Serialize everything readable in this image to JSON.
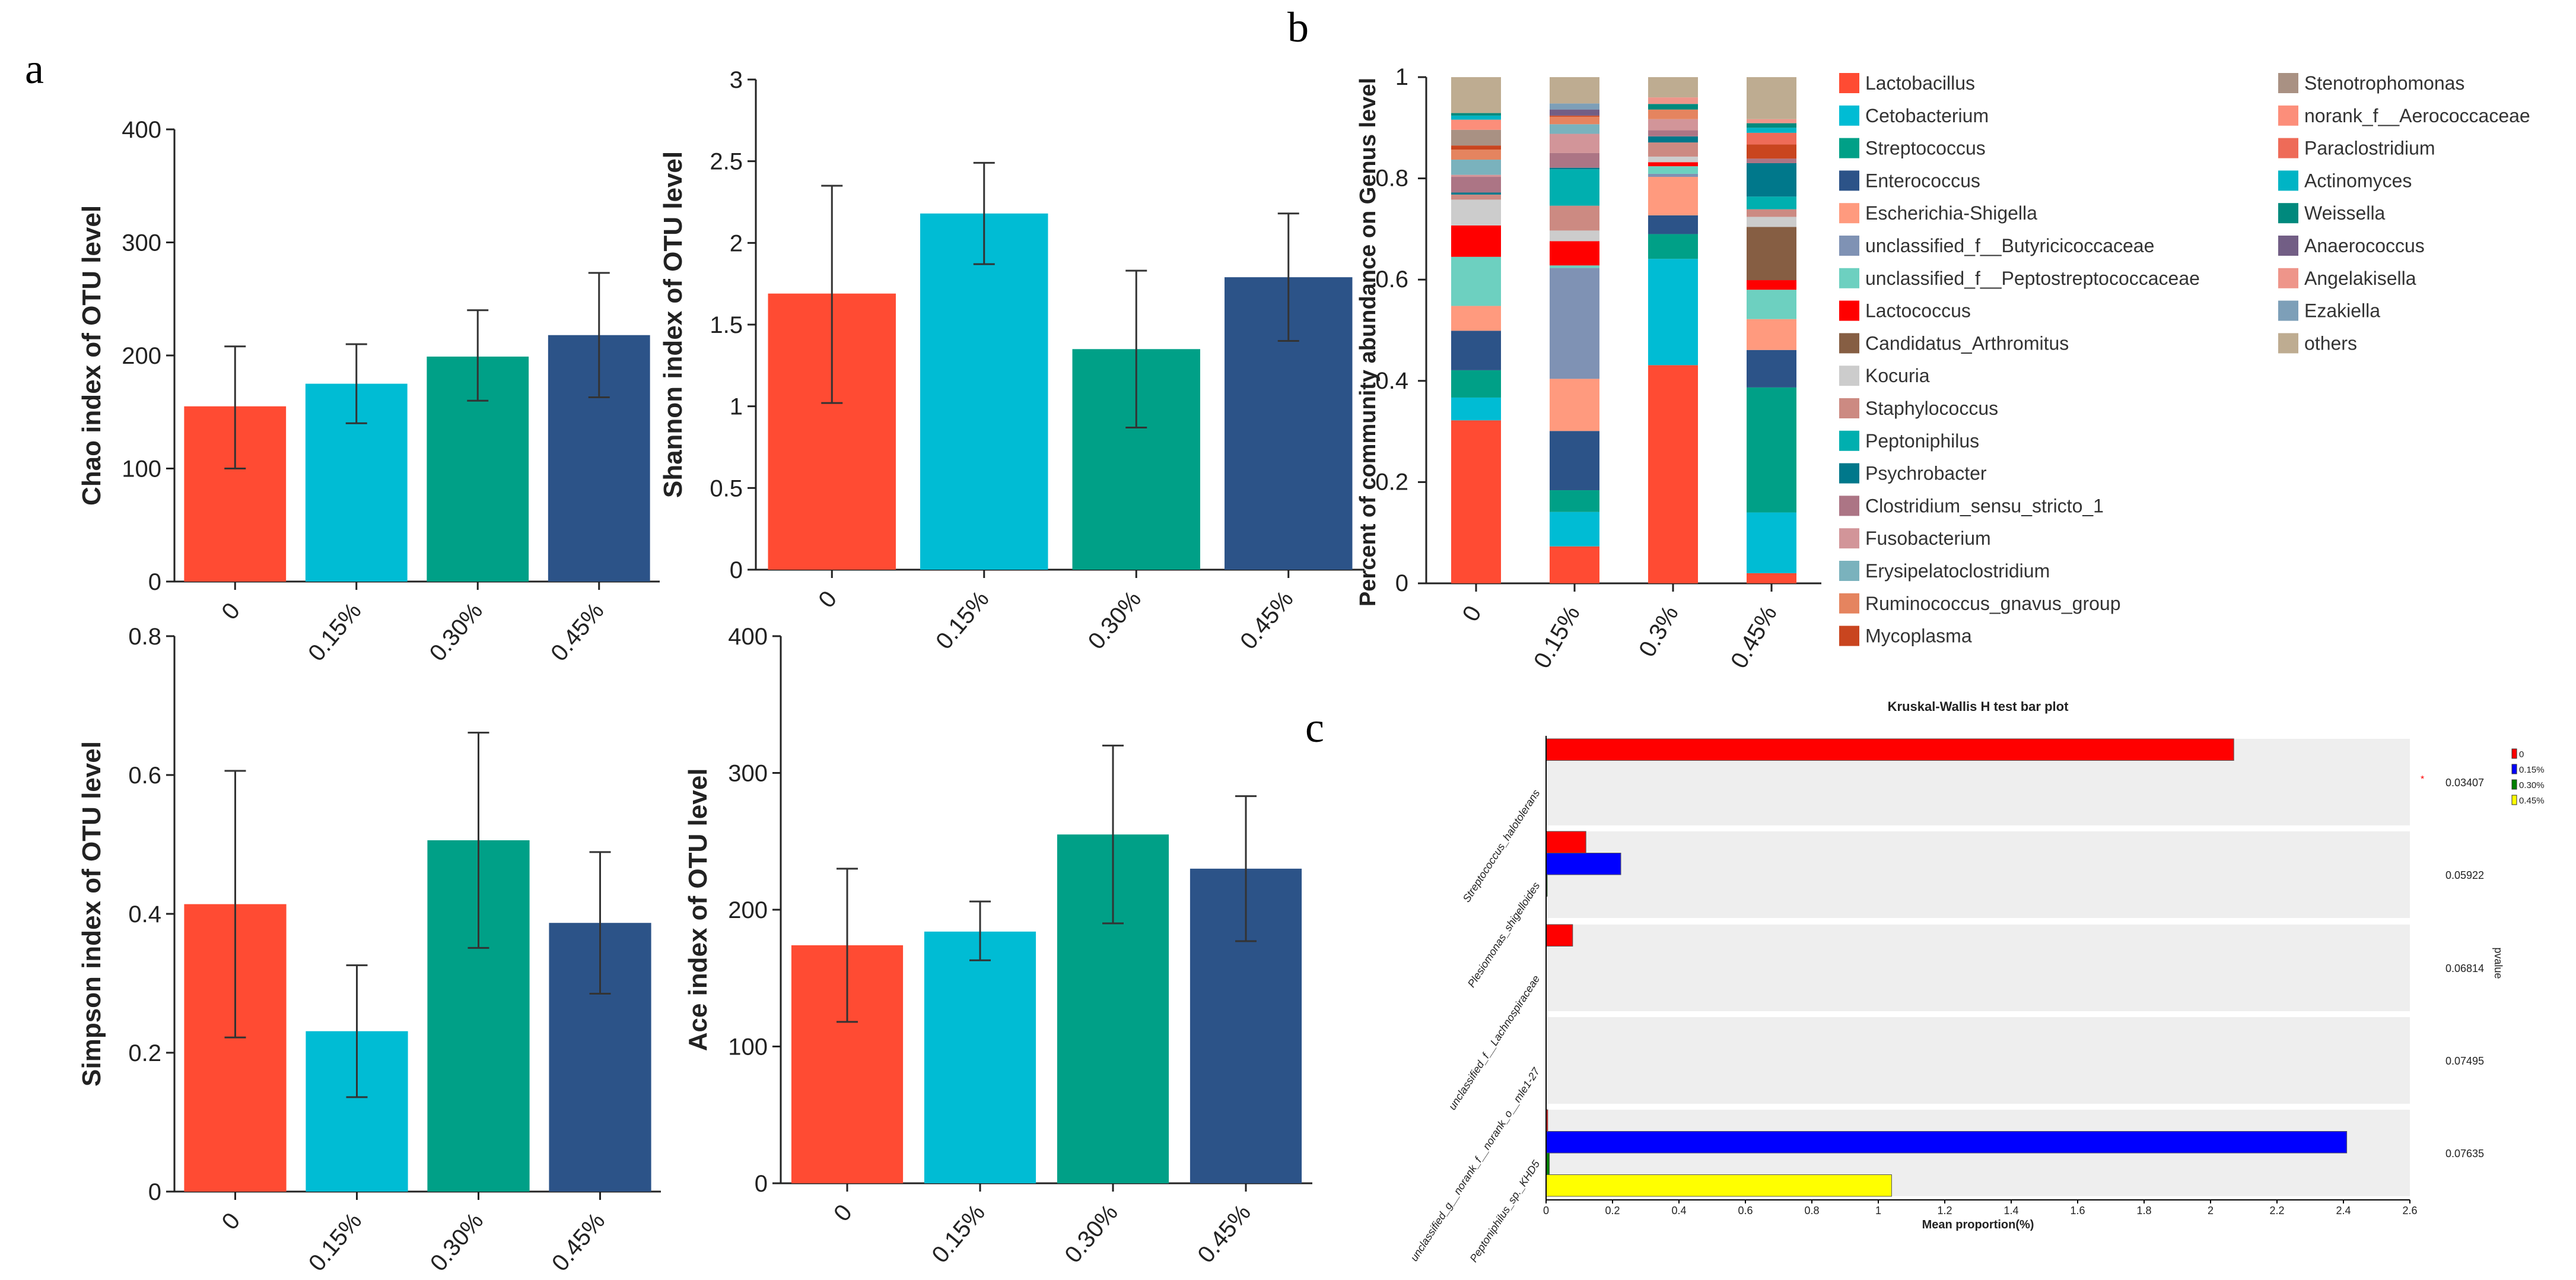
{
  "panel_labels": {
    "a": "a",
    "b": "b",
    "c": "c"
  },
  "chart_data": [
    {
      "id": "chao",
      "type": "bar",
      "ylabel": "Chao index of OTU level",
      "categories": [
        "0",
        "0.15%",
        "0.30%",
        "0.45%"
      ],
      "values": [
        155,
        175,
        199,
        218
      ],
      "error_low": [
        100,
        140,
        160,
        163
      ],
      "error_high": [
        208,
        210,
        240,
        273
      ],
      "ylim": [
        0,
        400
      ],
      "yticks": [
        0,
        100,
        200,
        300,
        400
      ],
      "colors": [
        "#FF4B33",
        "#00BCD4",
        "#00A087",
        "#2C5388"
      ]
    },
    {
      "id": "shannon",
      "type": "bar",
      "ylabel": "Shannon index of OTU level",
      "categories": [
        "0",
        "0.15%",
        "0.30%",
        "0.45%"
      ],
      "values": [
        1.69,
        2.18,
        1.35,
        1.79
      ],
      "error_low": [
        1.02,
        1.87,
        0.87,
        1.4
      ],
      "error_high": [
        2.35,
        2.49,
        1.83,
        2.18
      ],
      "ylim": [
        0,
        3
      ],
      "yticks": [
        0,
        0.5,
        1,
        1.5,
        2,
        2.5,
        3
      ],
      "colors": [
        "#FF4B33",
        "#00BCD4",
        "#00A087",
        "#2C5388"
      ]
    },
    {
      "id": "simpson",
      "type": "bar",
      "ylabel": "Simpson index of OTU level",
      "categories": [
        "0",
        "0.15%",
        "0.30%",
        "0.45%"
      ],
      "values": [
        0.414,
        0.231,
        0.506,
        0.387
      ],
      "error_low": [
        0.222,
        0.136,
        0.351,
        0.285
      ],
      "error_high": [
        0.606,
        0.326,
        0.661,
        0.489
      ],
      "ylim": [
        0,
        0.8
      ],
      "yticks": [
        0,
        0.2,
        0.4,
        0.6,
        0.8
      ],
      "colors": [
        "#FF4B33",
        "#00BCD4",
        "#00A087",
        "#2C5388"
      ]
    },
    {
      "id": "ace",
      "type": "bar",
      "ylabel": "Ace index of OTU level",
      "categories": [
        "0",
        "0.15%",
        "0.30%",
        "0.45%"
      ],
      "values": [
        174,
        184,
        255,
        230
      ],
      "error_low": [
        118,
        163,
        190,
        177
      ],
      "error_high": [
        230,
        206,
        320,
        283
      ],
      "ylim": [
        0,
        400
      ],
      "yticks": [
        0,
        100,
        200,
        300,
        400
      ],
      "colors": [
        "#FF4B33",
        "#00BCD4",
        "#00A087",
        "#2C5388"
      ]
    },
    {
      "id": "genus",
      "type": "bar",
      "stacked": true,
      "ylabel": "Percent of community abundance on Genus level",
      "categories": [
        "0",
        "0.15%",
        "0.3%",
        "0.45%"
      ],
      "ylim": [
        0,
        1
      ],
      "yticks": [
        "0",
        "0.2",
        "0.4",
        "0.6",
        "0.8",
        "1"
      ],
      "legend_placement": "right",
      "series": [
        {
          "name": "Lactobacillus",
          "color": "#FF4B33",
          "values": [
            0.322,
            0.073,
            0.431,
            0.02
          ]
        },
        {
          "name": "Cetobacterium",
          "color": "#00BCD4",
          "values": [
            0.045,
            0.068,
            0.21,
            0.12
          ]
        },
        {
          "name": "Streptococcus",
          "color": "#00A087",
          "values": [
            0.054,
            0.043,
            0.049,
            0.247
          ]
        },
        {
          "name": "Enterococcus",
          "color": "#2C5388",
          "values": [
            0.078,
            0.117,
            0.037,
            0.074
          ]
        },
        {
          "name": "Escherichia-Shigella",
          "color": "#FF9A7E",
          "values": [
            0.049,
            0.103,
            0.076,
            0.061
          ]
        },
        {
          "name": "unclassified_f__Butyricicoccaceae",
          "color": "#7F92B4",
          "values": [
            0,
            0.219,
            0.006,
            0
          ]
        },
        {
          "name": "unclassified_f__Peptostreptococcaceae",
          "color": "#6DD0C0",
          "values": [
            0.097,
            0.005,
            0.015,
            0.058
          ]
        },
        {
          "name": "Lactococcus",
          "color": "#FF0000",
          "values": [
            0.062,
            0.048,
            0.008,
            0.019
          ]
        },
        {
          "name": "Candidatus_Arthromitus",
          "color": "#865E43",
          "values": [
            0,
            0,
            0,
            0.105
          ]
        },
        {
          "name": "Kocuria",
          "color": "#CCCCCC",
          "values": [
            0.051,
            0.021,
            0.011,
            0.02
          ]
        },
        {
          "name": "Staphylococcus",
          "color": "#CC8A82",
          "values": [
            0.01,
            0.049,
            0.028,
            0.015
          ]
        },
        {
          "name": "Peptoniphilus",
          "color": "#00AFAF",
          "values": [
            0,
            0.072,
            0,
            0.025
          ]
        },
        {
          "name": "Psychrobacter",
          "color": "#00788B",
          "values": [
            0.004,
            0.003,
            0.012,
            0.066
          ]
        },
        {
          "name": "Clostridium_sensu_stricto_1",
          "color": "#AC7585",
          "values": [
            0.031,
            0.029,
            0.012,
            0.009
          ]
        },
        {
          "name": "Fusobacterium",
          "color": "#D29599",
          "values": [
            0.004,
            0.038,
            0.022,
            0
          ]
        },
        {
          "name": "Erysipelatoclostridium",
          "color": "#7AB2BD",
          "values": [
            0.03,
            0.019,
            0,
            0
          ]
        },
        {
          "name": "Ruminococcus_gnavus_group",
          "color": "#E5845F",
          "values": [
            0.02,
            0.015,
            0.019,
            0
          ]
        },
        {
          "name": "Mycoplasma",
          "color": "#C9451F",
          "values": [
            0.008,
            0.002,
            0,
            0.028
          ]
        },
        {
          "name": "Stenotrophomonas",
          "color": "#A99183",
          "values": [
            0.031,
            0,
            0,
            0
          ]
        },
        {
          "name": "norank_f__Aerococcaceae",
          "color": "#FC8E7A",
          "values": [
            0.02,
            0,
            0,
            0
          ]
        },
        {
          "name": "Paraclostridium",
          "color": "#EE6B58",
          "values": [
            0,
            0,
            0,
            0.023
          ]
        },
        {
          "name": "Actinomyces",
          "color": "#00B4C5",
          "values": [
            0.008,
            0,
            0,
            0.01
          ]
        },
        {
          "name": "Weissella",
          "color": "#00897D",
          "values": [
            0.005,
            0,
            0.011,
            0.009
          ]
        },
        {
          "name": "Anaerococcus",
          "color": "#725E85",
          "values": [
            0,
            0.012,
            0,
            0
          ]
        },
        {
          "name": "Angelakisella",
          "color": "#EE958A",
          "values": [
            0,
            0,
            0.013,
            0.008
          ]
        },
        {
          "name": "Ezakiella",
          "color": "#7D9FB8",
          "values": [
            0,
            0.012,
            0,
            0
          ]
        },
        {
          "name": "others",
          "color": "#BEAC91",
          "values": [
            0.071,
            0.052,
            0.04,
            0.083
          ]
        }
      ]
    },
    {
      "id": "kruskal",
      "type": "bar",
      "orientation": "horizontal",
      "title": "Kruskal-Wallis H test bar plot",
      "xlabel": "Mean proportion(%)",
      "right_label": "pvalue",
      "xlim": [
        0,
        2.6
      ],
      "xticks": [
        "0",
        "0.2",
        "0.4",
        "0.6",
        "0.8",
        "1",
        "1.2",
        "1.4",
        "1.6",
        "1.8",
        "2",
        "2.2",
        "2.4",
        "2.6"
      ],
      "categories": [
        "Streptococcus_halotolerans",
        "Plesiomonas_shigelloides",
        "unclassified_f__Lachnospiraceae",
        "unclassified_g__norank_f__norank_o__mle1-27",
        "Peptoniphilus_sp._KHD5"
      ],
      "pvalues": [
        "0.03407",
        "0.05922",
        "0.06814",
        "0.07495",
        "0.07635"
      ],
      "significance": [
        "*",
        "",
        "",
        "",
        ""
      ],
      "legend_placement": "top-right",
      "series": [
        {
          "name": "0",
          "color": "#FF0000",
          "values": [
            2.07,
            0.12,
            0.08,
            0,
            0.005
          ]
        },
        {
          "name": "0.15%",
          "color": "#0000FF",
          "values": [
            0,
            0.225,
            0,
            0,
            2.41
          ]
        },
        {
          "name": "0.30%",
          "color": "#008000",
          "values": [
            0,
            0.002,
            0,
            0,
            0.01
          ]
        },
        {
          "name": "0.45%",
          "color": "#FFFF00",
          "values": [
            0,
            0,
            0,
            0,
            1.04
          ]
        }
      ]
    }
  ]
}
